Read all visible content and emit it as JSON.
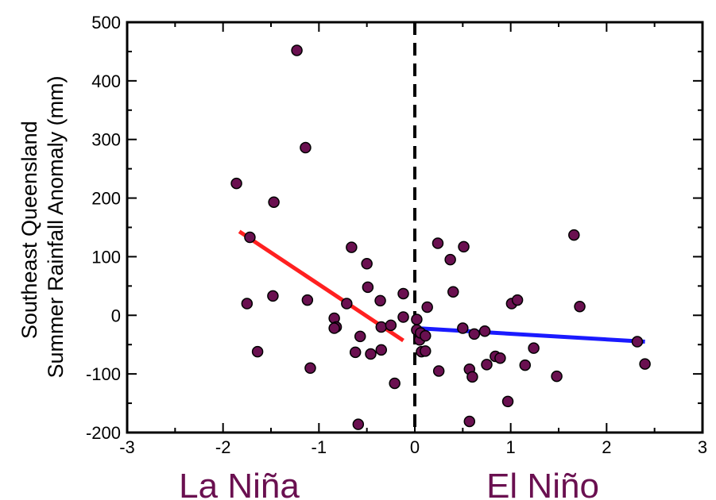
{
  "colors": {
    "point_fill": "#6a1050",
    "point_stroke": "#000000",
    "la_nina_trend": "#ff2020",
    "el_nino_trend": "#1a1aff",
    "phase_label": "#6a1050",
    "zero_line": "#000000"
  },
  "chart_data": {
    "type": "scatter",
    "title": "",
    "ylabel_lines": [
      "Southeast Queensland",
      "Summer Rainfall Anomaly (mm)"
    ],
    "xlabel": "",
    "xlim": [
      -3,
      3
    ],
    "ylim": [
      -200,
      500
    ],
    "xticks": [
      -3,
      -2,
      -1,
      0,
      1,
      2,
      3
    ],
    "yticks": [
      -200,
      -100,
      0,
      100,
      200,
      300,
      400,
      500
    ],
    "grid": false,
    "phase_labels": [
      {
        "text": "La Niña",
        "x": -1.5
      },
      {
        "text": "El Niño",
        "x": 1.5
      }
    ],
    "divider_x": 0,
    "points": [
      {
        "x": -1.86,
        "y": 225
      },
      {
        "x": -1.72,
        "y": 133
      },
      {
        "x": -1.75,
        "y": 20
      },
      {
        "x": -1.64,
        "y": -62
      },
      {
        "x": -1.47,
        "y": 193
      },
      {
        "x": -1.48,
        "y": 33
      },
      {
        "x": -1.23,
        "y": 452
      },
      {
        "x": -1.14,
        "y": 286
      },
      {
        "x": -1.12,
        "y": 26
      },
      {
        "x": -1.09,
        "y": -90
      },
      {
        "x": -0.71,
        "y": 20
      },
      {
        "x": -0.66,
        "y": 116
      },
      {
        "x": -0.84,
        "y": -5
      },
      {
        "x": -0.82,
        "y": -20
      },
      {
        "x": -0.84,
        "y": -22
      },
      {
        "x": -0.62,
        "y": -63
      },
      {
        "x": -0.57,
        "y": -36
      },
      {
        "x": -0.59,
        "y": -186
      },
      {
        "x": -0.5,
        "y": 88
      },
      {
        "x": -0.49,
        "y": 48
      },
      {
        "x": -0.46,
        "y": -66
      },
      {
        "x": -0.36,
        "y": 25
      },
      {
        "x": -0.35,
        "y": -20
      },
      {
        "x": -0.35,
        "y": -59
      },
      {
        "x": -0.25,
        "y": -17
      },
      {
        "x": -0.21,
        "y": -116
      },
      {
        "x": -0.12,
        "y": 37
      },
      {
        "x": -0.12,
        "y": -3
      },
      {
        "x": 0.02,
        "y": -7
      },
      {
        "x": 0.02,
        "y": -25
      },
      {
        "x": 0.05,
        "y": -42
      },
      {
        "x": 0.06,
        "y": -30
      },
      {
        "x": 0.07,
        "y": -62
      },
      {
        "x": 0.11,
        "y": -35
      },
      {
        "x": 0.11,
        "y": -61
      },
      {
        "x": 0.13,
        "y": 14
      },
      {
        "x": 0.24,
        "y": 123
      },
      {
        "x": 0.25,
        "y": -95
      },
      {
        "x": 0.37,
        "y": 95
      },
      {
        "x": 0.4,
        "y": 40
      },
      {
        "x": 0.5,
        "y": -22
      },
      {
        "x": 0.51,
        "y": 117
      },
      {
        "x": 0.57,
        "y": -181
      },
      {
        "x": 0.57,
        "y": -92
      },
      {
        "x": 0.6,
        "y": -105
      },
      {
        "x": 0.62,
        "y": -32
      },
      {
        "x": 0.73,
        "y": -27
      },
      {
        "x": 0.75,
        "y": -84
      },
      {
        "x": 0.84,
        "y": -70
      },
      {
        "x": 0.89,
        "y": -73
      },
      {
        "x": 0.97,
        "y": -147
      },
      {
        "x": 1.01,
        "y": 20
      },
      {
        "x": 1.07,
        "y": 26
      },
      {
        "x": 1.15,
        "y": -85
      },
      {
        "x": 1.24,
        "y": -56
      },
      {
        "x": 1.48,
        "y": -104
      },
      {
        "x": 1.66,
        "y": 137
      },
      {
        "x": 1.72,
        "y": 15
      },
      {
        "x": 2.32,
        "y": -45
      },
      {
        "x": 2.4,
        "y": -83
      }
    ],
    "trend_lines": [
      {
        "id": "la-nina-trend",
        "x": [
          -1.83,
          -0.12
        ],
        "y": [
          143,
          -43
        ]
      },
      {
        "id": "el-nino-trend",
        "x": [
          0.02,
          2.4
        ],
        "y": [
          -22,
          -45
        ]
      }
    ]
  }
}
